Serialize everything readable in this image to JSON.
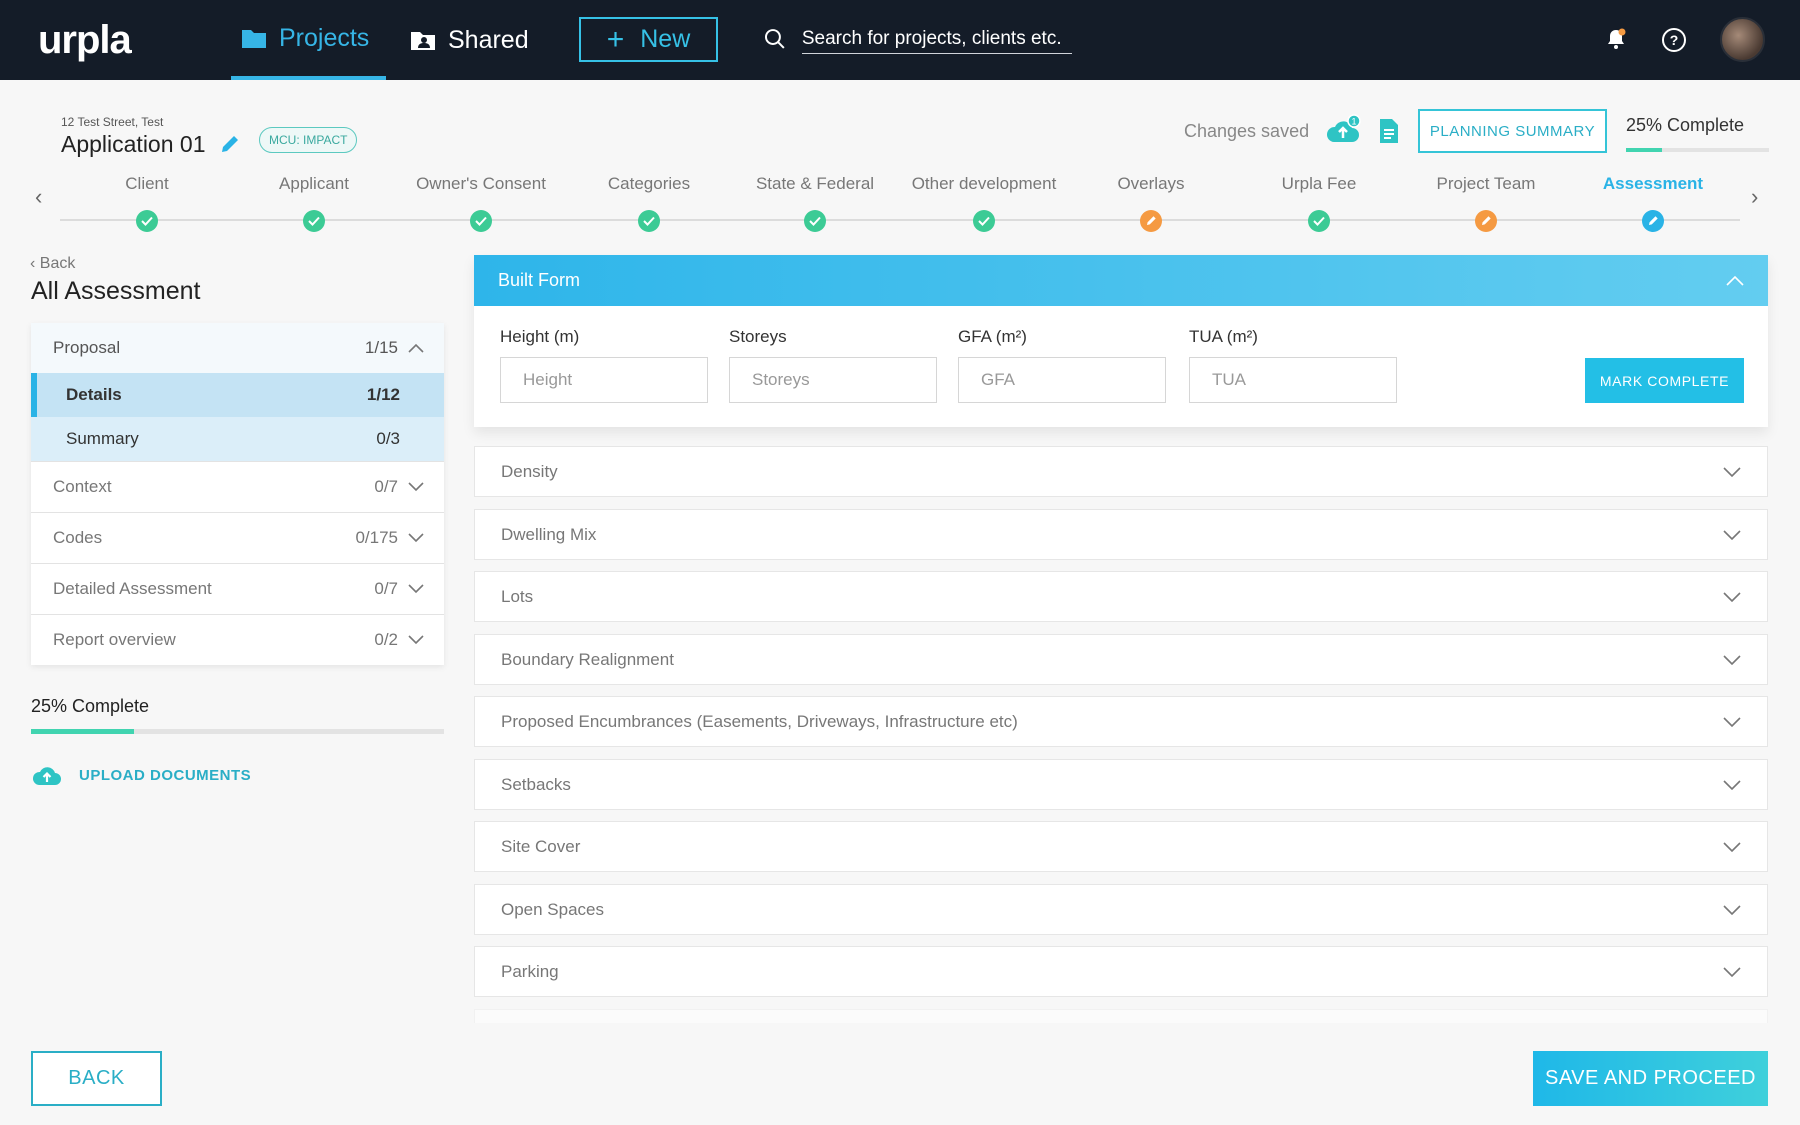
{
  "nav": {
    "logo": "urpla",
    "projects_label": "Projects",
    "shared_label": "Shared",
    "new_label": "New",
    "search_placeholder": "Search for projects, clients etc."
  },
  "header": {
    "address": "12 Test Street, Test",
    "title": "Application 01",
    "badge": "MCU: IMPACT",
    "changes_status": "Changes saved",
    "upload_count": "1",
    "planning_summary_label": "PLANNING SUMMARY",
    "complete_label": "25% Complete",
    "complete_percent": 25
  },
  "stepper": {
    "steps": [
      {
        "label": "Client",
        "status": "done"
      },
      {
        "label": "Applicant",
        "status": "done"
      },
      {
        "label": "Owner's Consent",
        "status": "done"
      },
      {
        "label": "Categories",
        "status": "done"
      },
      {
        "label": "State & Federal",
        "status": "done"
      },
      {
        "label": "Other development",
        "status": "done"
      },
      {
        "label": "Overlays",
        "status": "warn"
      },
      {
        "label": "Urpla Fee",
        "status": "done"
      },
      {
        "label": "Project Team",
        "status": "warn"
      },
      {
        "label": "Assessment",
        "status": "active"
      }
    ]
  },
  "sidebar": {
    "back_label": "Back",
    "title": "All Assessment",
    "proposal": {
      "label": "Proposal",
      "count": "1/15"
    },
    "sub_items": [
      {
        "label": "Details",
        "count": "1/12"
      },
      {
        "label": "Summary",
        "count": "0/3"
      }
    ],
    "sections": [
      {
        "label": "Context",
        "count": "0/7"
      },
      {
        "label": "Codes",
        "count": "0/175"
      },
      {
        "label": "Detailed Assessment",
        "count": "0/7"
      },
      {
        "label": "Report overview",
        "count": "0/2"
      }
    ],
    "complete_label": "25% Complete",
    "complete_percent": 25,
    "upload_label": "UPLOAD DOCUMENTS"
  },
  "built_form": {
    "title": "Built Form",
    "fields": [
      {
        "label": "Height (m)",
        "placeholder": "Height"
      },
      {
        "label": "Storeys",
        "placeholder": "Storeys"
      },
      {
        "label": "GFA (m²)",
        "placeholder": "GFA"
      },
      {
        "label": "TUA (m²)",
        "placeholder": "TUA"
      }
    ],
    "mark_complete_label": "MARK COMPLETE"
  },
  "accordions": [
    "Density",
    "Dwelling Mix",
    "Lots",
    "Boundary Realignment",
    "Proposed Encumbrances (Easements, Driveways, Infrastructure etc)",
    "Setbacks",
    "Site Cover",
    "Open Spaces",
    "Parking"
  ],
  "footer": {
    "back_label": "BACK",
    "save_label": "SAVE AND PROCEED"
  },
  "colors": {
    "accent": "#2ab3e6",
    "done": "#3ccb95",
    "warn": "#f59a42",
    "topbar": "#141c28"
  }
}
